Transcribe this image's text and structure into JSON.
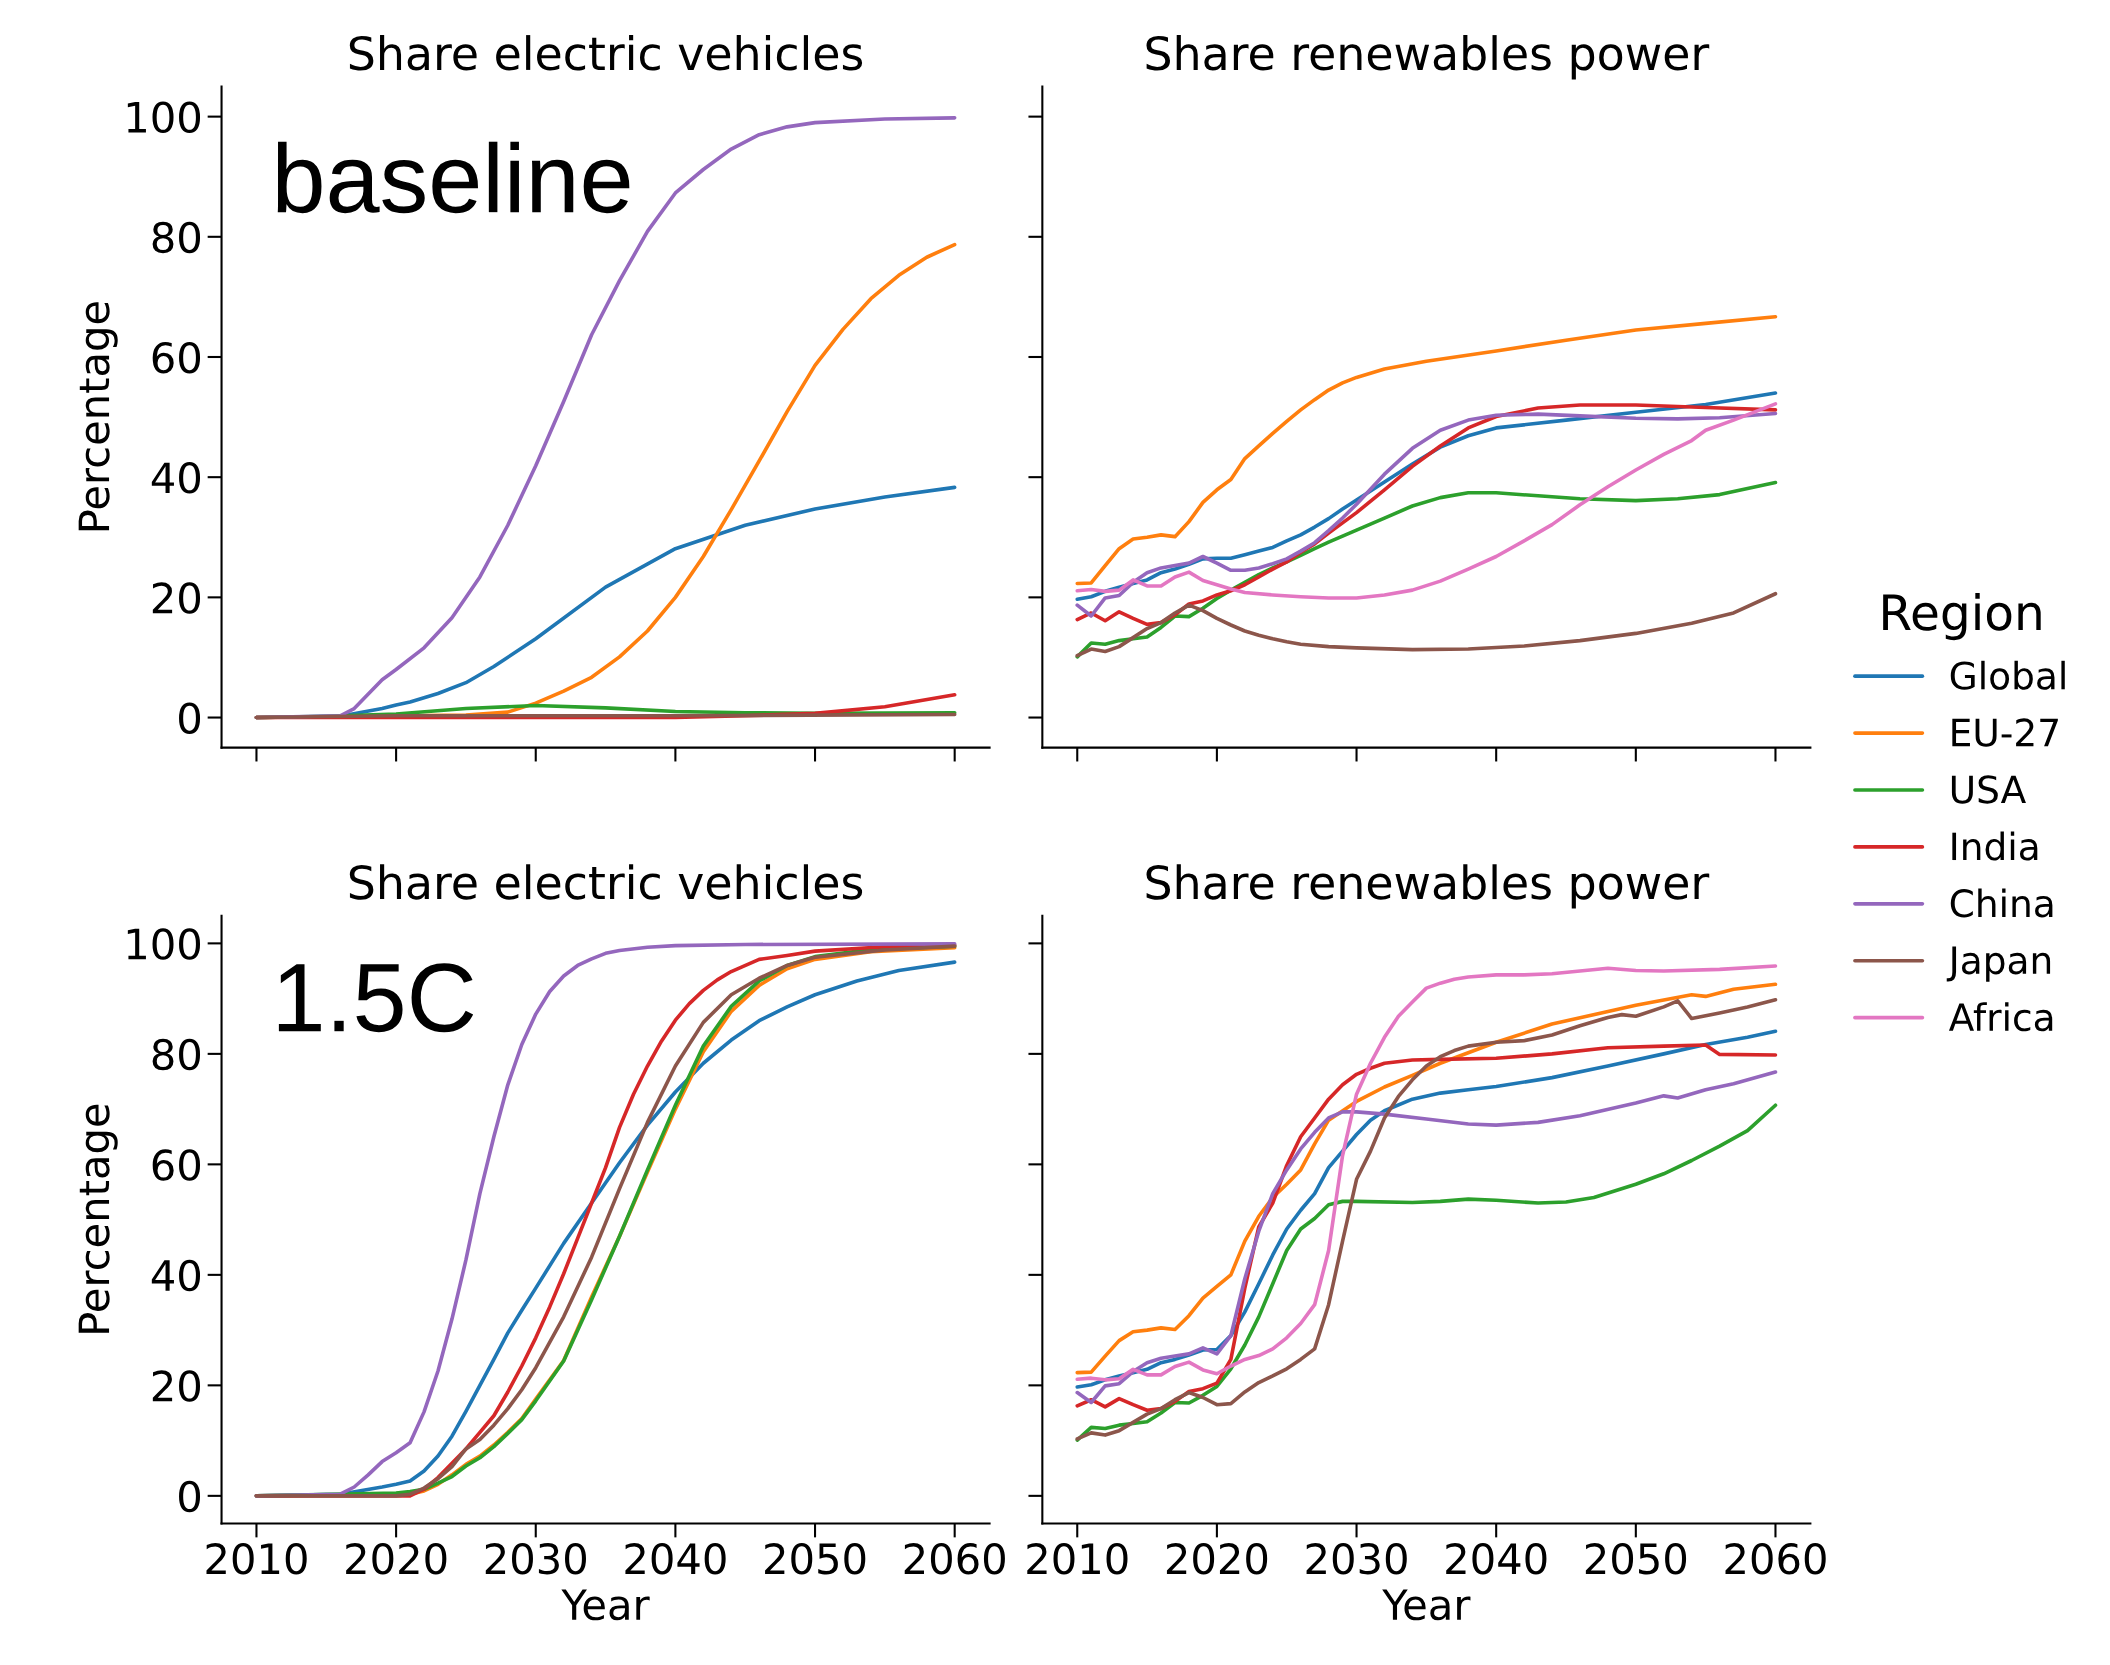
{
  "chart_data": [
    {
      "type": "line",
      "title": "Share electric vehicles",
      "ylabel": "Percentage",
      "annotations": [
        "baseline"
      ],
      "xlim": [
        2007.5,
        2062.5
      ],
      "ylim": [
        -5,
        105
      ],
      "xticks": [
        2010,
        2020,
        2030,
        2040,
        2050,
        2060
      ],
      "yticks": [
        0,
        20,
        40,
        60,
        80,
        100
      ],
      "tick_labels": "y",
      "line_style": "solid",
      "series": [
        {
          "color": "#1f77b4",
          "x": [
            2010,
            2016,
            2019,
            2020,
            2021,
            2023,
            2025,
            2027,
            2030,
            2035,
            2040,
            2045,
            2050,
            2055,
            2060
          ],
          "values": [
            0,
            0.2,
            1.5,
            2.1,
            2.6,
            4,
            5.8,
            8.5,
            13.1,
            21.7,
            28.1,
            32,
            34.7,
            36.7,
            38.3
          ]
        },
        {
          "color": "#ff7f0e",
          "x": [
            2010,
            2025,
            2028,
            2030,
            2032,
            2034,
            2036,
            2038,
            2040,
            2042,
            2044,
            2046,
            2048,
            2050,
            2052,
            2054,
            2056,
            2058,
            2060
          ],
          "values": [
            0,
            0.4,
            0.9,
            2.4,
            4.4,
            6.7,
            10.1,
            14.4,
            20,
            26.8,
            34.6,
            42.7,
            50.9,
            58.6,
            64.6,
            69.7,
            73.6,
            76.6,
            78.7
          ]
        },
        {
          "color": "#2ca02c",
          "x": [
            2010,
            2015,
            2020,
            2025,
            2030,
            2035,
            2040,
            2045,
            2050,
            2060
          ],
          "values": [
            0,
            0.2,
            0.6,
            1.5,
            2,
            1.6,
            1,
            0.8,
            0.7,
            0.8
          ]
        },
        {
          "color": "#d62728",
          "x": [
            2010,
            2040,
            2045,
            2050,
            2055,
            2060
          ],
          "values": [
            0,
            0,
            0.3,
            0.7,
            1.8,
            3.8
          ]
        },
        {
          "color": "#9467bd",
          "x": [
            2010,
            2016,
            2017,
            2019,
            2020,
            2022,
            2024,
            2026,
            2028,
            2030,
            2032,
            2034,
            2036,
            2038,
            2040,
            2042,
            2044,
            2046,
            2048,
            2050,
            2055,
            2060
          ],
          "values": [
            0,
            0.3,
            1.5,
            6.3,
            8,
            11.6,
            16.6,
            23.4,
            32,
            41.9,
            52.6,
            63.7,
            72.7,
            80.9,
            87.3,
            91.2,
            94.6,
            97,
            98.3,
            99,
            99.6,
            99.8
          ]
        },
        {
          "color": "#8c564b",
          "x": [
            2010,
            2020,
            2040,
            2060
          ],
          "values": [
            0,
            0.3,
            0.3,
            0.5
          ]
        }
      ]
    },
    {
      "type": "line",
      "title": "Share renewables power",
      "xlim": [
        2007.5,
        2062.5
      ],
      "ylim": [
        -5,
        105
      ],
      "xticks": [
        2010,
        2020,
        2030,
        2040,
        2050,
        2060
      ],
      "yticks": [
        0,
        20,
        40,
        60,
        80,
        100
      ],
      "tick_labels": false,
      "line_style": "solid",
      "series": [
        {
          "color": "#1f77b4",
          "x": [
            2010,
            2011,
            2012,
            2013,
            2014,
            2015,
            2016,
            2017,
            2018,
            2019,
            2020,
            2021,
            2022,
            2023,
            2024,
            2025,
            2026,
            2027,
            2028,
            2029,
            2030,
            2032,
            2034,
            2036,
            2038,
            2040,
            2045,
            2050,
            2055,
            2060
          ],
          "values": [
            19.7,
            20.1,
            21,
            21.7,
            22.3,
            22.9,
            24.1,
            24.7,
            25.5,
            26.4,
            26.5,
            26.5,
            27.1,
            27.7,
            28.3,
            29.4,
            30.4,
            31.7,
            33.1,
            34.7,
            36.2,
            39.2,
            42.2,
            45,
            46.9,
            48.2,
            49.5,
            50.8,
            52.1,
            54
          ]
        },
        {
          "color": "#ff7f0e",
          "x": [
            2010,
            2011,
            2012,
            2013,
            2014,
            2015,
            2016,
            2017,
            2018,
            2019,
            2020,
            2021,
            2022,
            2023,
            2024,
            2025,
            2026,
            2027,
            2028,
            2029,
            2030,
            2032,
            2035,
            2040,
            2045,
            2050,
            2055,
            2060
          ],
          "values": [
            22.3,
            22.4,
            25.3,
            28.1,
            29.7,
            30.0,
            30.4,
            30.1,
            32.6,
            35.8,
            37.9,
            39.6,
            43.1,
            45.2,
            47.3,
            49.3,
            51.2,
            52.9,
            54.5,
            55.7,
            56.6,
            58,
            59.3,
            61,
            62.8,
            64.5,
            65.6,
            66.7
          ]
        },
        {
          "color": "#2ca02c",
          "x": [
            2010,
            2011,
            2012,
            2013,
            2014,
            2015,
            2016,
            2017,
            2018,
            2019,
            2020,
            2021,
            2022,
            2023,
            2024,
            2025,
            2026,
            2027,
            2028,
            2029,
            2030,
            2032,
            2034,
            2036,
            2038,
            2040,
            2043,
            2046,
            2050,
            2053,
            2056,
            2060
          ],
          "values": [
            10.1,
            12.4,
            12.2,
            12.8,
            13.1,
            13.4,
            15,
            16.9,
            16.8,
            18.2,
            19.8,
            21.2,
            22.5,
            23.8,
            24.9,
            25.9,
            27,
            28.1,
            29.2,
            30.2,
            31.2,
            33.2,
            35.2,
            36.6,
            37.4,
            37.4,
            36.9,
            36.4,
            36.1,
            36.4,
            37.1,
            39.1
          ]
        },
        {
          "color": "#d62728",
          "x": [
            2010,
            2011,
            2012,
            2013,
            2014,
            2015,
            2016,
            2017,
            2018,
            2019,
            2020,
            2021,
            2022,
            2023,
            2024,
            2025,
            2026,
            2027,
            2028,
            2029,
            2030,
            2032,
            2034,
            2036,
            2038,
            2040,
            2043,
            2046,
            2050,
            2055,
            2060
          ],
          "values": [
            16.3,
            17.4,
            16.1,
            17.6,
            16.5,
            15.5,
            15.8,
            17.1,
            18.9,
            19.4,
            20.4,
            21.1,
            22.1,
            23.4,
            24.7,
            25.9,
            27.5,
            28.9,
            30.7,
            32.4,
            34.1,
            37.9,
            41.8,
            45.2,
            48.2,
            50.1,
            51.5,
            52,
            52,
            51.6,
            51.2
          ]
        },
        {
          "color": "#9467bd",
          "x": [
            2010,
            2011,
            2012,
            2013,
            2014,
            2015,
            2016,
            2017,
            2018,
            2019,
            2020,
            2021,
            2022,
            2023,
            2024,
            2025,
            2026,
            2027,
            2028,
            2029,
            2030,
            2032,
            2034,
            2036,
            2038,
            2040,
            2043,
            2046,
            2050,
            2053,
            2056,
            2060
          ],
          "values": [
            18.7,
            16.9,
            19.9,
            20.3,
            22.5,
            24.1,
            24.9,
            25.3,
            25.7,
            26.8,
            25.7,
            24.5,
            24.5,
            24.9,
            25.6,
            26.4,
            27.7,
            29.1,
            31.1,
            33.2,
            35.5,
            40.5,
            44.8,
            47.8,
            49.5,
            50.3,
            50.5,
            50.2,
            49.8,
            49.7,
            49.9,
            50.6
          ]
        },
        {
          "color": "#8c564b",
          "x": [
            2010,
            2011,
            2012,
            2013,
            2014,
            2015,
            2016,
            2017,
            2018,
            2019,
            2020,
            2021,
            2022,
            2023,
            2024,
            2025,
            2026,
            2028,
            2030,
            2034,
            2038,
            2042,
            2046,
            2050,
            2054,
            2057,
            2060
          ],
          "values": [
            10.3,
            11.4,
            11,
            11.8,
            13.3,
            14.8,
            15.8,
            17.4,
            18.7,
            17.8,
            16.5,
            15.4,
            14.4,
            13.7,
            13.1,
            12.6,
            12.2,
            11.8,
            11.6,
            11.3,
            11.4,
            11.9,
            12.8,
            14,
            15.7,
            17.4,
            20.6
          ]
        },
        {
          "color": "#e377c2",
          "x": [
            2010,
            2011,
            2012,
            2013,
            2014,
            2015,
            2016,
            2017,
            2018,
            2019,
            2020,
            2021,
            2022,
            2024,
            2026,
            2028,
            2030,
            2032,
            2034,
            2036,
            2038,
            2040,
            2042,
            2044,
            2046,
            2048,
            2050,
            2052,
            2054,
            2055,
            2057,
            2060
          ],
          "values": [
            21.1,
            21.3,
            21,
            21.2,
            22.9,
            21.9,
            21.9,
            23.4,
            24.2,
            22.8,
            22.1,
            21.4,
            20.8,
            20.4,
            20.1,
            19.9,
            19.9,
            20.4,
            21.2,
            22.7,
            24.7,
            26.8,
            29.4,
            32.1,
            35.4,
            38.4,
            41.2,
            43.8,
            46.1,
            47.8,
            49.5,
            52.2
          ]
        }
      ]
    },
    {
      "type": "line",
      "title": "Share electric vehicles",
      "xlabel": "Year",
      "ylabel": "Percentage",
      "annotations": [
        "1.5C"
      ],
      "xlim": [
        2007.5,
        2062.5
      ],
      "ylim": [
        -5,
        105
      ],
      "xticks": [
        2010,
        2020,
        2030,
        2040,
        2050,
        2060
      ],
      "yticks": [
        0,
        20,
        40,
        60,
        80,
        100
      ],
      "line_style": "solid",
      "series": [
        {
          "color": "#1f77b4",
          "x": [
            2010,
            2016,
            2019,
            2020,
            2021,
            2022,
            2023,
            2024,
            2025,
            2026,
            2027,
            2028,
            2029,
            2030,
            2032,
            2034,
            2036,
            2038,
            2040,
            2042,
            2044,
            2046,
            2048,
            2050,
            2053,
            2056,
            2060
          ],
          "values": [
            0,
            0.3,
            1.6,
            2.1,
            2.7,
            4.5,
            7.2,
            10.8,
            15.3,
            20,
            24.7,
            29.5,
            33.6,
            37.6,
            45.7,
            53,
            60.3,
            67.1,
            73.1,
            78.3,
            82.5,
            86,
            88.5,
            90.7,
            93.2,
            95.1,
            96.6
          ]
        },
        {
          "color": "#ff7f0e",
          "x": [
            2010,
            2021,
            2022,
            2023,
            2024,
            2025,
            2026,
            2027,
            2028,
            2029,
            2030,
            2032,
            2034,
            2036,
            2038,
            2040,
            2042,
            2044,
            2046,
            2048,
            2050,
            2054,
            2060
          ],
          "values": [
            0,
            0.3,
            0.9,
            2.1,
            3.8,
            5.7,
            7.2,
            9.2,
            11.5,
            14,
            17.5,
            24.5,
            36,
            47,
            58.6,
            70,
            80.4,
            87.7,
            92.4,
            95.4,
            97.1,
            98.5,
            99.2
          ]
        },
        {
          "color": "#2ca02c",
          "x": [
            2010,
            2020,
            2021,
            2022,
            2023,
            2024,
            2025,
            2026,
            2027,
            2028,
            2029,
            2030,
            2032,
            2034,
            2036,
            2038,
            2040,
            2042,
            2044,
            2046,
            2048,
            2050,
            2054,
            2060
          ],
          "values": [
            0,
            0.5,
            0.8,
            1.2,
            2.3,
            3.5,
            5.4,
            6.9,
            8.9,
            11.3,
            13.8,
            17.2,
            24.4,
            35.5,
            47,
            59,
            70.7,
            81.4,
            88.6,
            93.2,
            96,
            97.6,
            98.9,
            99.5
          ]
        },
        {
          "color": "#d62728",
          "x": [
            2010,
            2021,
            2022,
            2023,
            2024,
            2025,
            2026,
            2027,
            2028,
            2029,
            2030,
            2031,
            2032,
            2033,
            2034,
            2035,
            2036,
            2037,
            2038,
            2039,
            2040,
            2041,
            2042,
            2043,
            2044,
            2046,
            2048,
            2050,
            2055,
            2060
          ],
          "values": [
            0,
            0,
            1.2,
            3.3,
            5.9,
            8.5,
            11.5,
            14.5,
            18.8,
            23.5,
            28.6,
            34.2,
            40.2,
            46.6,
            53,
            59.4,
            66.7,
            72.7,
            77.8,
            82.3,
            86.1,
            89.1,
            91.5,
            93.4,
            94.9,
            97.1,
            97.8,
            98.6,
            99.4,
            99.7
          ]
        },
        {
          "color": "#9467bd",
          "x": [
            2010,
            2016,
            2017,
            2018,
            2019,
            2020,
            2021,
            2022,
            2023,
            2024,
            2025,
            2026,
            2027,
            2028,
            2029,
            2030,
            2031,
            2032,
            2033,
            2034,
            2035,
            2036,
            2038,
            2040,
            2045,
            2060
          ],
          "values": [
            0,
            0.3,
            1.6,
            3.8,
            6.2,
            7.8,
            9.6,
            15.2,
            22.6,
            32,
            42.7,
            54.7,
            65,
            74.4,
            81.7,
            87.2,
            91.3,
            94.1,
            96,
            97.2,
            98.2,
            98.7,
            99.3,
            99.6,
            99.8,
            99.9
          ]
        },
        {
          "color": "#8c564b",
          "x": [
            2010,
            2020,
            2021,
            2022,
            2023,
            2024,
            2025,
            2026,
            2027,
            2028,
            2029,
            2030,
            2032,
            2034,
            2036,
            2038,
            2040,
            2042,
            2044,
            2046,
            2048,
            2050,
            2055,
            2060
          ],
          "values": [
            0,
            0,
            0.3,
            1.4,
            3.1,
            5.3,
            8.5,
            10.2,
            12.8,
            15.8,
            19.2,
            23.2,
            32.4,
            43.2,
            55.6,
            67.6,
            77.8,
            85.7,
            90.7,
            93.7,
            96,
            97.5,
            98.8,
            99.5
          ]
        }
      ]
    },
    {
      "type": "line",
      "title": "Share renewables power",
      "xlabel": "Year",
      "legend_title": "Region",
      "legend": "right",
      "xlim": [
        2007.5,
        2062.5
      ],
      "ylim": [
        -5,
        105
      ],
      "xticks": [
        2010,
        2020,
        2030,
        2040,
        2050,
        2060
      ],
      "yticks": [
        0,
        20,
        40,
        60,
        80,
        100
      ],
      "tick_labels": "x",
      "line_style": "solid",
      "series": [
        {
          "name": "Global",
          "color": "#1f77b4",
          "x": [
            2010,
            2011,
            2012,
            2013,
            2014,
            2015,
            2016,
            2017,
            2018,
            2019,
            2020,
            2021,
            2022,
            2023,
            2024,
            2025,
            2026,
            2027,
            2028,
            2029,
            2030,
            2031,
            2032,
            2034,
            2036,
            2038,
            2040,
            2044,
            2048,
            2052,
            2055,
            2058,
            2060
          ],
          "values": [
            19.7,
            20.1,
            21,
            21.7,
            22.3,
            22.9,
            24.1,
            24.7,
            25.5,
            26.4,
            26.5,
            29,
            33.3,
            38.4,
            43.6,
            48.3,
            51.7,
            54.7,
            59.4,
            62.4,
            65.4,
            68,
            69.7,
            71.8,
            72.9,
            73.5,
            74.1,
            75.7,
            77.8,
            80,
            81.7,
            83,
            84.1
          ]
        },
        {
          "name": "EU-27",
          "color": "#ff7f0e",
          "x": [
            2010,
            2011,
            2012,
            2013,
            2014,
            2015,
            2016,
            2017,
            2018,
            2019,
            2020,
            2021,
            2022,
            2023,
            2024,
            2025,
            2026,
            2027,
            2028,
            2030,
            2032,
            2034,
            2036,
            2040,
            2044,
            2050,
            2054,
            2055,
            2057,
            2060
          ],
          "values": [
            22.3,
            22.4,
            25.3,
            28.1,
            29.7,
            30.0,
            30.4,
            30.1,
            32.6,
            35.8,
            37.9,
            40,
            46.1,
            50.6,
            54,
            56.4,
            59,
            63.7,
            68,
            71.4,
            74,
            76.1,
            78.3,
            82.1,
            85.4,
            88.8,
            90.7,
            90.4,
            91.7,
            92.6
          ]
        },
        {
          "name": "USA",
          "color": "#2ca02c",
          "x": [
            2010,
            2011,
            2012,
            2013,
            2014,
            2015,
            2016,
            2017,
            2018,
            2019,
            2020,
            2021,
            2022,
            2023,
            2024,
            2025,
            2026,
            2027,
            2028,
            2029,
            2030,
            2034,
            2036,
            2038,
            2040,
            2043,
            2045,
            2047,
            2050,
            2052,
            2054,
            2056,
            2058,
            2060
          ],
          "values": [
            10.1,
            12.4,
            12.2,
            12.8,
            13.1,
            13.4,
            15,
            16.9,
            16.8,
            18.2,
            19.8,
            23,
            27.3,
            32.4,
            38.4,
            44.4,
            48.3,
            50.2,
            52.7,
            53.3,
            53.3,
            53.1,
            53.3,
            53.7,
            53.5,
            53,
            53.2,
            54,
            56.4,
            58.3,
            60.7,
            63.3,
            66.1,
            70.7
          ]
        },
        {
          "name": "India",
          "color": "#d62728",
          "x": [
            2010,
            2011,
            2012,
            2013,
            2014,
            2015,
            2016,
            2017,
            2018,
            2019,
            2020,
            2021,
            2022,
            2023,
            2024,
            2025,
            2026,
            2027,
            2028,
            2029,
            2030,
            2031,
            2032,
            2034,
            2036,
            2040,
            2044,
            2048,
            2052,
            2055,
            2056,
            2060
          ],
          "values": [
            16.3,
            17.4,
            16.1,
            17.6,
            16.5,
            15.5,
            15.8,
            17.1,
            18.9,
            19.4,
            20.4,
            24.7,
            37.6,
            48.7,
            53,
            59.8,
            65,
            68.4,
            71.8,
            74.4,
            76.3,
            77.4,
            78.3,
            78.9,
            79,
            79.2,
            80,
            81.1,
            81.4,
            81.6,
            79.9,
            79.8
          ]
        },
        {
          "name": "China",
          "color": "#9467bd",
          "x": [
            2010,
            2011,
            2012,
            2013,
            2014,
            2015,
            2016,
            2017,
            2018,
            2019,
            2020,
            2021,
            2022,
            2023,
            2024,
            2025,
            2026,
            2027,
            2028,
            2029,
            2030,
            2032,
            2035,
            2038,
            2040,
            2043,
            2046,
            2050,
            2052,
            2053,
            2055,
            2057,
            2060
          ],
          "values": [
            18.7,
            16.9,
            19.9,
            20.3,
            22.5,
            24.1,
            24.9,
            25.3,
            25.7,
            26.8,
            25.7,
            29,
            39.3,
            47.9,
            54.7,
            59,
            62.8,
            65.8,
            68.4,
            69.5,
            69.5,
            69.1,
            68.2,
            67.3,
            67.1,
            67.6,
            68.8,
            71.1,
            72.4,
            72,
            73.5,
            74.6,
            76.7
          ]
        },
        {
          "name": "Japan",
          "color": "#8c564b",
          "x": [
            2010,
            2011,
            2012,
            2013,
            2014,
            2015,
            2016,
            2017,
            2018,
            2019,
            2020,
            2021,
            2022,
            2023,
            2024,
            2025,
            2026,
            2027,
            2028,
            2029,
            2030,
            2031,
            2032,
            2033,
            2034,
            2035,
            2036,
            2037,
            2038,
            2040,
            2042,
            2044,
            2046,
            2048,
            2049,
            2050,
            2052,
            2053,
            2054,
            2056,
            2058,
            2060
          ],
          "values": [
            10.3,
            11.4,
            11,
            11.8,
            13.3,
            14.8,
            15.8,
            17.4,
            18.7,
            17.8,
            16.5,
            16.7,
            18.8,
            20.5,
            21.7,
            23,
            24.7,
            26.6,
            34.6,
            46.1,
            57.3,
            62.4,
            68.4,
            72.3,
            75.3,
            77.8,
            79.5,
            80.6,
            81.4,
            82.1,
            82.4,
            83.4,
            85.1,
            86.6,
            87.1,
            86.8,
            88.5,
            89.6,
            86.4,
            87.4,
            88.5,
            89.8
          ]
        },
        {
          "name": "Africa",
          "color": "#e377c2",
          "x": [
            2010,
            2011,
            2012,
            2013,
            2014,
            2015,
            2016,
            2017,
            2018,
            2019,
            2020,
            2021,
            2022,
            2023,
            2024,
            2025,
            2026,
            2027,
            2028,
            2029,
            2030,
            2031,
            2032,
            2033,
            2034,
            2035,
            2036,
            2037,
            2038,
            2040,
            2041,
            2042,
            2044,
            2046,
            2048,
            2050,
            2052,
            2056,
            2060
          ],
          "values": [
            21.1,
            21.3,
            21,
            21.2,
            22.9,
            21.9,
            21.9,
            23.4,
            24.2,
            22.8,
            22.1,
            23.5,
            24.7,
            25.4,
            26.6,
            28.6,
            31.2,
            34.6,
            44.4,
            61.6,
            72.7,
            78.3,
            83,
            86.8,
            89.4,
            91.9,
            92.8,
            93.5,
            93.9,
            94.3,
            94.3,
            94.3,
            94.5,
            95,
            95.5,
            95.1,
            95,
            95.3,
            95.9
          ]
        }
      ]
    }
  ]
}
